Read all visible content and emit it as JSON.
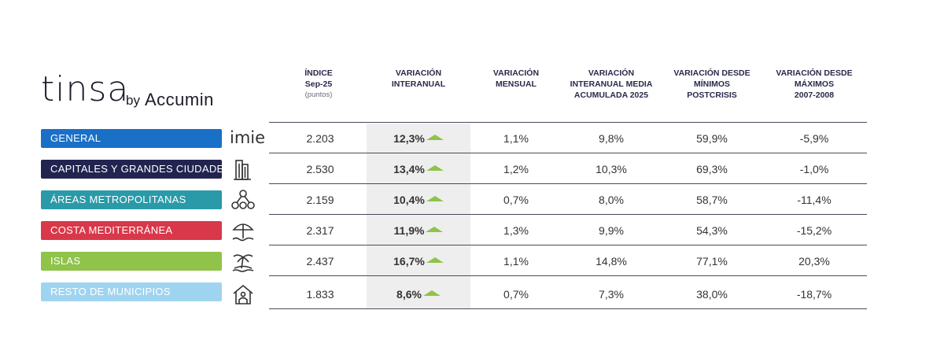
{
  "logo": {
    "brand": "tinsa",
    "by": "by",
    "partner": "Accumin"
  },
  "headers": {
    "indice": [
      "ÍNDICE",
      "Sep-25"
    ],
    "indice_sub": "(puntos)",
    "interanual": [
      "VARIACIÓN",
      "INTERANUAL"
    ],
    "mensual": [
      "VARIACIÓN",
      "MENSUAL"
    ],
    "media": [
      "VARIACIÓN",
      "INTERANUAL MEDIA",
      "ACUMULADA 2025"
    ],
    "minimos": [
      "VARIACIÓN DESDE",
      "MÍNIMOS",
      "POSTCRISIS"
    ],
    "maximos": [
      "VARIACIÓN DESDE",
      "MÁXIMOS",
      "2007-2008"
    ]
  },
  "colors": {
    "general": "#1a6fc7",
    "capitales": "#22244f",
    "areas": "#2a9aa8",
    "costa": "#d8384a",
    "islas": "#8fc34a",
    "resto": "#9fd4f0",
    "arrow": "#8fc34a"
  },
  "rows": [
    {
      "label": "GENERAL",
      "icon": "imie-logo-icon",
      "icon_text": "imie",
      "indice": "2.203",
      "interanual": "12,3%",
      "mensual": "1,1%",
      "media": "9,8%",
      "minimos": "59,9%",
      "maximos": "-5,9%"
    },
    {
      "label": "CAPITALES Y GRANDES CIUDADES",
      "icon": "buildings-icon",
      "indice": "2.530",
      "interanual": "13,4%",
      "mensual": "1,2%",
      "media": "10,3%",
      "minimos": "69,3%",
      "maximos": "-1,0%"
    },
    {
      "label": "ÁREAS METROPOLITANAS",
      "icon": "network-nodes-icon",
      "indice": "2.159",
      "interanual": "10,4%",
      "mensual": "0,7%",
      "media": "8,0%",
      "minimos": "58,7%",
      "maximos": "-11,4%"
    },
    {
      "label": "COSTA MEDITERRÁNEA",
      "icon": "beach-umbrella-icon",
      "indice": "2.317",
      "interanual": "11,9%",
      "mensual": "1,3%",
      "media": "9,9%",
      "minimos": "54,3%",
      "maximos": "-15,2%"
    },
    {
      "label": "ISLAS",
      "icon": "island-palm-icon",
      "indice": "2.437",
      "interanual": "16,7%",
      "mensual": "1,1%",
      "media": "14,8%",
      "minimos": "77,1%",
      "maximos": "20,3%"
    },
    {
      "label": "RESTO DE MUNICIPIOS",
      "icon": "house-icon",
      "indice": "1.833",
      "interanual": "8,6%",
      "mensual": "0,7%",
      "media": "7,3%",
      "minimos": "38,0%",
      "maximos": "-18,7%"
    }
  ]
}
